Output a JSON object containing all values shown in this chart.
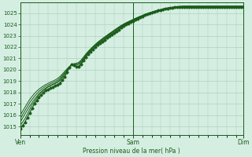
{
  "xlabel": "Pression niveau de la mer( hPa )",
  "x_ticks_labels": [
    "Ven",
    "Sam",
    "Dim"
  ],
  "x_ticks_pos": [
    0,
    48,
    95
  ],
  "ylim": [
    1014.3,
    1025.9
  ],
  "yticks": [
    1015,
    1016,
    1017,
    1018,
    1019,
    1020,
    1021,
    1022,
    1023,
    1024,
    1025
  ],
  "bg_color": "#d5eee2",
  "grid_color": "#a8cab8",
  "line_color": "#1a5c1a",
  "total_hours": 96,
  "series": {
    "main": [
      1014.8,
      1015.1,
      1015.4,
      1015.8,
      1016.2,
      1016.6,
      1017.0,
      1017.3,
      1017.6,
      1017.8,
      1018.0,
      1018.2,
      1018.3,
      1018.4,
      1018.5,
      1018.6,
      1018.7,
      1018.85,
      1019.1,
      1019.4,
      1019.8,
      1020.2,
      1020.5,
      1020.4,
      1020.3,
      1020.3,
      1020.5,
      1020.8,
      1021.1,
      1021.4,
      1021.6,
      1021.8,
      1022.0,
      1022.2,
      1022.35,
      1022.5,
      1022.65,
      1022.8,
      1022.95,
      1023.1,
      1023.25,
      1023.4,
      1023.55,
      1023.7,
      1023.85,
      1024.0,
      1024.1,
      1024.2,
      1024.3,
      1024.4,
      1024.5,
      1024.6,
      1024.7,
      1024.8,
      1024.88,
      1024.96,
      1025.03,
      1025.1,
      1025.16,
      1025.22,
      1025.27,
      1025.32,
      1025.37,
      1025.4,
      1025.43,
      1025.46,
      1025.49,
      1025.5,
      1025.5,
      1025.5,
      1025.5,
      1025.5,
      1025.5,
      1025.5,
      1025.5,
      1025.5,
      1025.5,
      1025.5,
      1025.5,
      1025.5,
      1025.5,
      1025.5,
      1025.5,
      1025.5,
      1025.5,
      1025.5,
      1025.5,
      1025.5,
      1025.5,
      1025.5,
      1025.5,
      1025.5,
      1025.5,
      1025.5,
      1025.5,
      1025.5
    ],
    "line2": [
      1015.1,
      1015.4,
      1015.7,
      1016.1,
      1016.5,
      1016.9,
      1017.2,
      1017.5,
      1017.8,
      1018.0,
      1018.2,
      1018.35,
      1018.5,
      1018.6,
      1018.7,
      1018.8,
      1018.9,
      1019.05,
      1019.3,
      1019.6,
      1019.9,
      1020.25,
      1020.5,
      1020.4,
      1020.3,
      1020.35,
      1020.6,
      1020.9,
      1021.2,
      1021.5,
      1021.7,
      1021.9,
      1022.1,
      1022.3,
      1022.45,
      1022.6,
      1022.75,
      1022.9,
      1023.05,
      1023.2,
      1023.35,
      1023.5,
      1023.65,
      1023.8,
      1023.92,
      1024.05,
      1024.15,
      1024.25,
      1024.35,
      1024.45,
      1024.55,
      1024.65,
      1024.73,
      1024.82,
      1024.9,
      1024.97,
      1025.04,
      1025.11,
      1025.17,
      1025.23,
      1025.28,
      1025.33,
      1025.38,
      1025.42,
      1025.45,
      1025.47,
      1025.5,
      1025.52,
      1025.53,
      1025.54,
      1025.55,
      1025.55,
      1025.55,
      1025.55,
      1025.55,
      1025.55,
      1025.55,
      1025.55,
      1025.55,
      1025.55,
      1025.55,
      1025.55,
      1025.55,
      1025.55,
      1025.55,
      1025.55,
      1025.55,
      1025.55,
      1025.55,
      1025.55,
      1025.55,
      1025.55,
      1025.55,
      1025.55,
      1025.55,
      1025.55
    ],
    "line3": [
      1015.4,
      1015.75,
      1016.1,
      1016.45,
      1016.8,
      1017.1,
      1017.4,
      1017.65,
      1017.9,
      1018.1,
      1018.28,
      1018.42,
      1018.55,
      1018.65,
      1018.75,
      1018.85,
      1018.97,
      1019.15,
      1019.4,
      1019.65,
      1019.95,
      1020.22,
      1020.45,
      1020.45,
      1020.42,
      1020.5,
      1020.7,
      1021.0,
      1021.3,
      1021.55,
      1021.78,
      1021.98,
      1022.18,
      1022.35,
      1022.52,
      1022.67,
      1022.82,
      1022.97,
      1023.12,
      1023.27,
      1023.42,
      1023.56,
      1023.7,
      1023.84,
      1023.96,
      1024.08,
      1024.18,
      1024.28,
      1024.38,
      1024.48,
      1024.58,
      1024.67,
      1024.75,
      1024.84,
      1024.91,
      1024.98,
      1025.05,
      1025.12,
      1025.18,
      1025.24,
      1025.29,
      1025.34,
      1025.39,
      1025.43,
      1025.46,
      1025.49,
      1025.52,
      1025.53,
      1025.55,
      1025.56,
      1025.57,
      1025.57,
      1025.57,
      1025.57,
      1025.57,
      1025.57,
      1025.57,
      1025.57,
      1025.57,
      1025.57,
      1025.57,
      1025.57,
      1025.57,
      1025.57,
      1025.57,
      1025.57,
      1025.57,
      1025.57,
      1025.57,
      1025.57,
      1025.57,
      1025.57,
      1025.57,
      1025.57,
      1025.57,
      1025.57
    ],
    "line4": [
      1015.7,
      1016.05,
      1016.4,
      1016.75,
      1017.1,
      1017.38,
      1017.65,
      1017.88,
      1018.1,
      1018.28,
      1018.44,
      1018.57,
      1018.68,
      1018.78,
      1018.88,
      1018.98,
      1019.1,
      1019.28,
      1019.52,
      1019.76,
      1020.02,
      1020.26,
      1020.46,
      1020.5,
      1020.5,
      1020.58,
      1020.78,
      1021.05,
      1021.33,
      1021.58,
      1021.8,
      1022.02,
      1022.22,
      1022.4,
      1022.56,
      1022.72,
      1022.87,
      1023.02,
      1023.17,
      1023.31,
      1023.46,
      1023.6,
      1023.74,
      1023.87,
      1023.99,
      1024.1,
      1024.2,
      1024.3,
      1024.4,
      1024.5,
      1024.59,
      1024.68,
      1024.76,
      1024.85,
      1024.92,
      1024.99,
      1025.06,
      1025.12,
      1025.18,
      1025.24,
      1025.3,
      1025.35,
      1025.4,
      1025.44,
      1025.47,
      1025.5,
      1025.53,
      1025.55,
      1025.57,
      1025.58,
      1025.59,
      1025.59,
      1025.59,
      1025.59,
      1025.59,
      1025.59,
      1025.59,
      1025.59,
      1025.59,
      1025.59,
      1025.59,
      1025.59,
      1025.59,
      1025.59,
      1025.59,
      1025.59,
      1025.59,
      1025.59,
      1025.59,
      1025.59,
      1025.59,
      1025.59,
      1025.59,
      1025.59,
      1025.59,
      1025.59
    ],
    "line5": [
      1016.0,
      1016.35,
      1016.7,
      1017.05,
      1017.38,
      1017.65,
      1017.9,
      1018.12,
      1018.3,
      1018.46,
      1018.6,
      1018.72,
      1018.82,
      1018.92,
      1019.02,
      1019.12,
      1019.25,
      1019.42,
      1019.64,
      1019.87,
      1020.1,
      1020.3,
      1020.48,
      1020.55,
      1020.58,
      1020.67,
      1020.87,
      1021.13,
      1021.4,
      1021.63,
      1021.84,
      1022.04,
      1022.23,
      1022.42,
      1022.58,
      1022.74,
      1022.89,
      1023.04,
      1023.19,
      1023.33,
      1023.48,
      1023.62,
      1023.76,
      1023.9,
      1024.02,
      1024.13,
      1024.23,
      1024.33,
      1024.42,
      1024.52,
      1024.61,
      1024.7,
      1024.78,
      1024.87,
      1024.94,
      1025.01,
      1025.07,
      1025.13,
      1025.19,
      1025.25,
      1025.31,
      1025.36,
      1025.41,
      1025.45,
      1025.48,
      1025.51,
      1025.54,
      1025.56,
      1025.58,
      1025.59,
      1025.6,
      1025.6,
      1025.6,
      1025.6,
      1025.6,
      1025.6,
      1025.6,
      1025.6,
      1025.6,
      1025.6,
      1025.6,
      1025.6,
      1025.6,
      1025.6,
      1025.6,
      1025.6,
      1025.6,
      1025.6,
      1025.6,
      1025.6,
      1025.6,
      1025.6,
      1025.6,
      1025.6,
      1025.6,
      1025.6
    ]
  }
}
